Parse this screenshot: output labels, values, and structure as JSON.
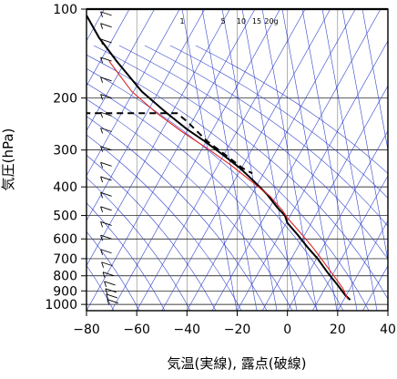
{
  "chart_data": {
    "type": "skew-t emagram",
    "xlabel": "気温(実線), 露点(破線)",
    "ylabel": "気圧(hPa)",
    "x_ticks": [
      -80,
      -60,
      -40,
      -20,
      0,
      20,
      40
    ],
    "x_tick_labels": [
      "−80",
      "−60",
      "−40",
      "−20",
      "0",
      "20",
      "40"
    ],
    "xlim": [
      -80,
      40
    ],
    "y_scale": "log",
    "ylim": [
      1050,
      100
    ],
    "y_ticks": [
      100,
      200,
      300,
      400,
      500,
      600,
      700,
      800,
      900,
      1000
    ],
    "y_tick_labels": [
      "100",
      "200",
      "300",
      "400",
      "500",
      "600",
      "700",
      "800",
      "900",
      "1000"
    ],
    "mixing_ratio_labels": [
      "1",
      "5",
      "10",
      "15",
      "20g"
    ],
    "grid": true,
    "colors": {
      "background_lines": "#3344cc",
      "temperature": "#000000",
      "parcel": "#dd2222",
      "dewpoint": "#000000"
    },
    "series": [
      {
        "kind": "temperature",
        "style": "solid",
        "points": [
          [
            -80,
            105
          ],
          [
            -75,
            125
          ],
          [
            -68,
            150
          ],
          [
            -58,
            190
          ],
          [
            -48,
            225
          ],
          [
            -40,
            255
          ],
          [
            -33,
            280
          ],
          [
            -26,
            310
          ],
          [
            -19,
            345
          ],
          [
            -13,
            385
          ],
          [
            -8,
            425
          ],
          [
            -4,
            470
          ],
          [
            -1,
            500
          ],
          [
            0,
            530
          ],
          [
            4,
            580
          ],
          [
            8,
            640
          ],
          [
            12,
            700
          ],
          [
            16,
            780
          ],
          [
            20,
            860
          ],
          [
            23,
            930
          ],
          [
            25,
            965
          ]
        ]
      },
      {
        "kind": "parcel",
        "style": "solid",
        "points": [
          [
            -71,
            150
          ],
          [
            -62,
            190
          ],
          [
            -52,
            225
          ],
          [
            -42,
            260
          ],
          [
            -31,
            300
          ],
          [
            -22,
            340
          ],
          [
            -14,
            385
          ],
          [
            -7,
            430
          ],
          [
            -2,
            480
          ],
          [
            0,
            510
          ],
          [
            5,
            570
          ],
          [
            10,
            640
          ],
          [
            14,
            710
          ],
          [
            18,
            790
          ],
          [
            22,
            880
          ],
          [
            24,
            960
          ]
        ]
      },
      {
        "kind": "dewpoint",
        "style": "dashed",
        "points": [
          [
            -81,
            225
          ],
          [
            -61,
            225
          ],
          [
            -44,
            225
          ],
          [
            -40,
            240
          ],
          [
            -32,
            280
          ],
          [
            -24,
            315
          ],
          [
            -18,
            345
          ],
          [
            -14,
            360
          ]
        ]
      }
    ],
    "wind_barbs": {
      "x": -70,
      "levels_hPa": [
        105,
        115,
        130,
        150,
        175,
        200,
        230,
        260,
        300,
        340,
        380,
        430,
        480,
        540,
        600,
        670,
        740,
        800,
        860,
        910,
        950,
        990
      ]
    }
  }
}
